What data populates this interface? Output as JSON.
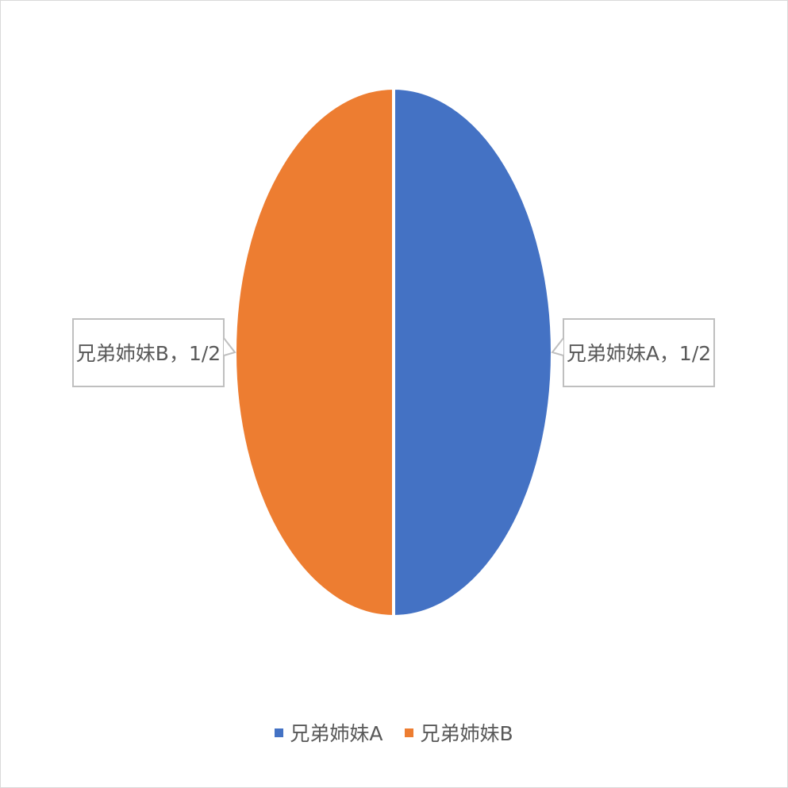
{
  "chart_data": {
    "type": "pie",
    "categories": [
      "兄弟姉妹A",
      "兄弟姉妹B"
    ],
    "values": [
      0.5,
      0.5
    ],
    "data_labels": [
      "兄弟姉妹A，1/2",
      "兄弟姉妹B，1/2"
    ],
    "colors": [
      "#4472c4",
      "#ed7d31"
    ],
    "legend_position": "bottom",
    "title": ""
  }
}
